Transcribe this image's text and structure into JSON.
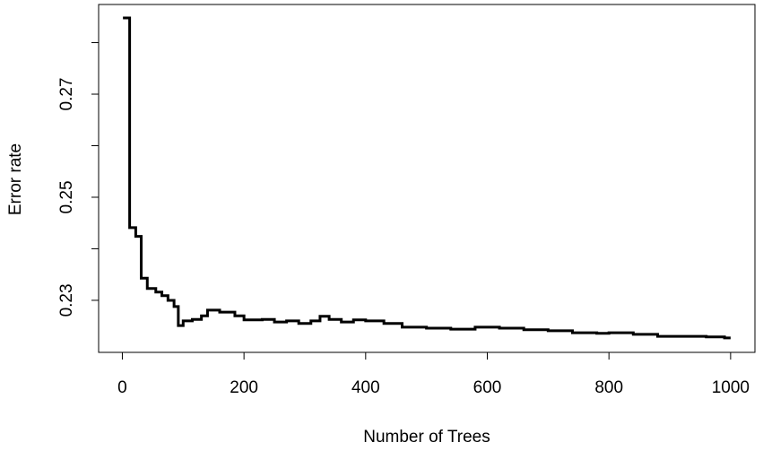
{
  "chart_data": {
    "type": "step",
    "xlabel": "Number of Trees",
    "ylabel": "Error rate",
    "x": [
      1,
      12,
      22,
      31,
      41,
      55,
      65,
      75,
      85,
      92,
      100,
      115,
      130,
      140,
      160,
      175,
      185,
      200,
      230,
      250,
      270,
      290,
      310,
      325,
      340,
      360,
      380,
      400,
      430,
      460,
      500,
      540,
      580,
      620,
      660,
      700,
      740,
      780,
      800,
      840,
      880,
      920,
      960,
      990,
      1000
    ],
    "values": [
      0.2848,
      0.2441,
      0.2424,
      0.2343,
      0.2323,
      0.2316,
      0.2309,
      0.23,
      0.2288,
      0.2251,
      0.226,
      0.2263,
      0.227,
      0.2281,
      0.2277,
      0.2277,
      0.227,
      0.2262,
      0.2263,
      0.2258,
      0.226,
      0.2255,
      0.226,
      0.2269,
      0.2263,
      0.2258,
      0.2262,
      0.226,
      0.2255,
      0.2248,
      0.2246,
      0.2244,
      0.2248,
      0.2246,
      0.2243,
      0.2241,
      0.2237,
      0.2236,
      0.2237,
      0.2234,
      0.223,
      0.223,
      0.2229,
      0.2227,
      0.2227
    ],
    "color": "#000000",
    "xlim": [
      -39,
      1040
    ],
    "xticks": [
      0,
      200,
      400,
      600,
      800,
      1000
    ],
    "ylim": [
      0.2199,
      0.2874
    ],
    "yticks": [
      0.23,
      0.25,
      0.27
    ],
    "yminor_ticks": [
      0.24,
      0.26,
      0.28
    ]
  }
}
